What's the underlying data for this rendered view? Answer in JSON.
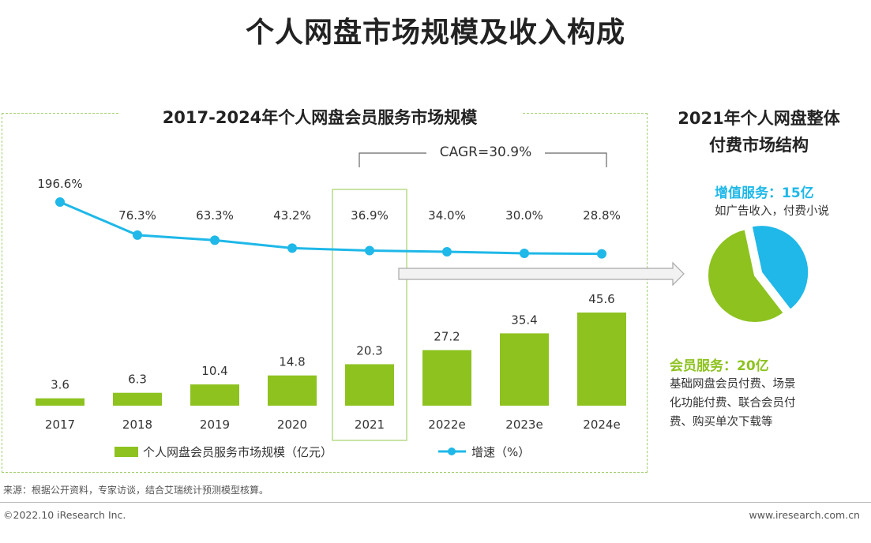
{
  "page_title": "个人网盘市场规模及收入构成",
  "chart_data": [
    {
      "type": "bar+line",
      "title": "2017-2024年个人网盘会员服务市场规模",
      "categories": [
        "2017",
        "2018",
        "2019",
        "2020",
        "2021",
        "2022e",
        "2023e",
        "2024e"
      ],
      "series": [
        {
          "name": "个人网盘会员服务市场规模（亿元）",
          "kind": "bar",
          "values": [
            3.6,
            6.3,
            10.4,
            14.8,
            20.3,
            27.2,
            35.4,
            45.6
          ],
          "labels": [
            "3.6",
            "6.3",
            "10.4",
            "14.8",
            "20.3",
            "27.2",
            "35.4",
            "45.6"
          ],
          "color": "#8dc21f"
        },
        {
          "name": "增速（%）",
          "kind": "line",
          "values": [
            196.6,
            76.3,
            63.3,
            43.2,
            36.9,
            34.0,
            30.0,
            28.8
          ],
          "labels": [
            "196.6%",
            "76.3%",
            "63.3%",
            "43.2%",
            "36.9%",
            "34.0%",
            "30.0%",
            "28.8%"
          ],
          "color": "#1fb8e8"
        }
      ],
      "highlight_category": "2021",
      "annotation": "CAGR=30.9%",
      "legend": {
        "bar_label": "个人网盘会员服务市场规模（亿元）",
        "line_label": "增速（%）",
        "position": "bottom"
      }
    },
    {
      "type": "pie",
      "title_line1": "2021年个人网盘整体",
      "title_line2": "付费市场结构",
      "slices": [
        {
          "name": "增值服务",
          "value": 15,
          "color": "#1fb8e8"
        },
        {
          "name": "会员服务",
          "value": 20,
          "color": "#8dc21f"
        }
      ]
    }
  ],
  "pie_labels": {
    "value_added_head": "增值服务：15亿",
    "value_added_desc": "如广告收入，付费小说",
    "member_head": "会员服务：20亿",
    "member_desc_1": "基础网盘会员付费、场景",
    "member_desc_2": "化功能付费、联合会员付",
    "member_desc_3": "费、购买单次下载等"
  },
  "footer": {
    "source": "来源：根据公开资料，专家访谈，结合艾瑞统计预测模型核算。",
    "copyright": "©2022.10 iResearch Inc.",
    "website": "www.iresearch.com.cn"
  }
}
